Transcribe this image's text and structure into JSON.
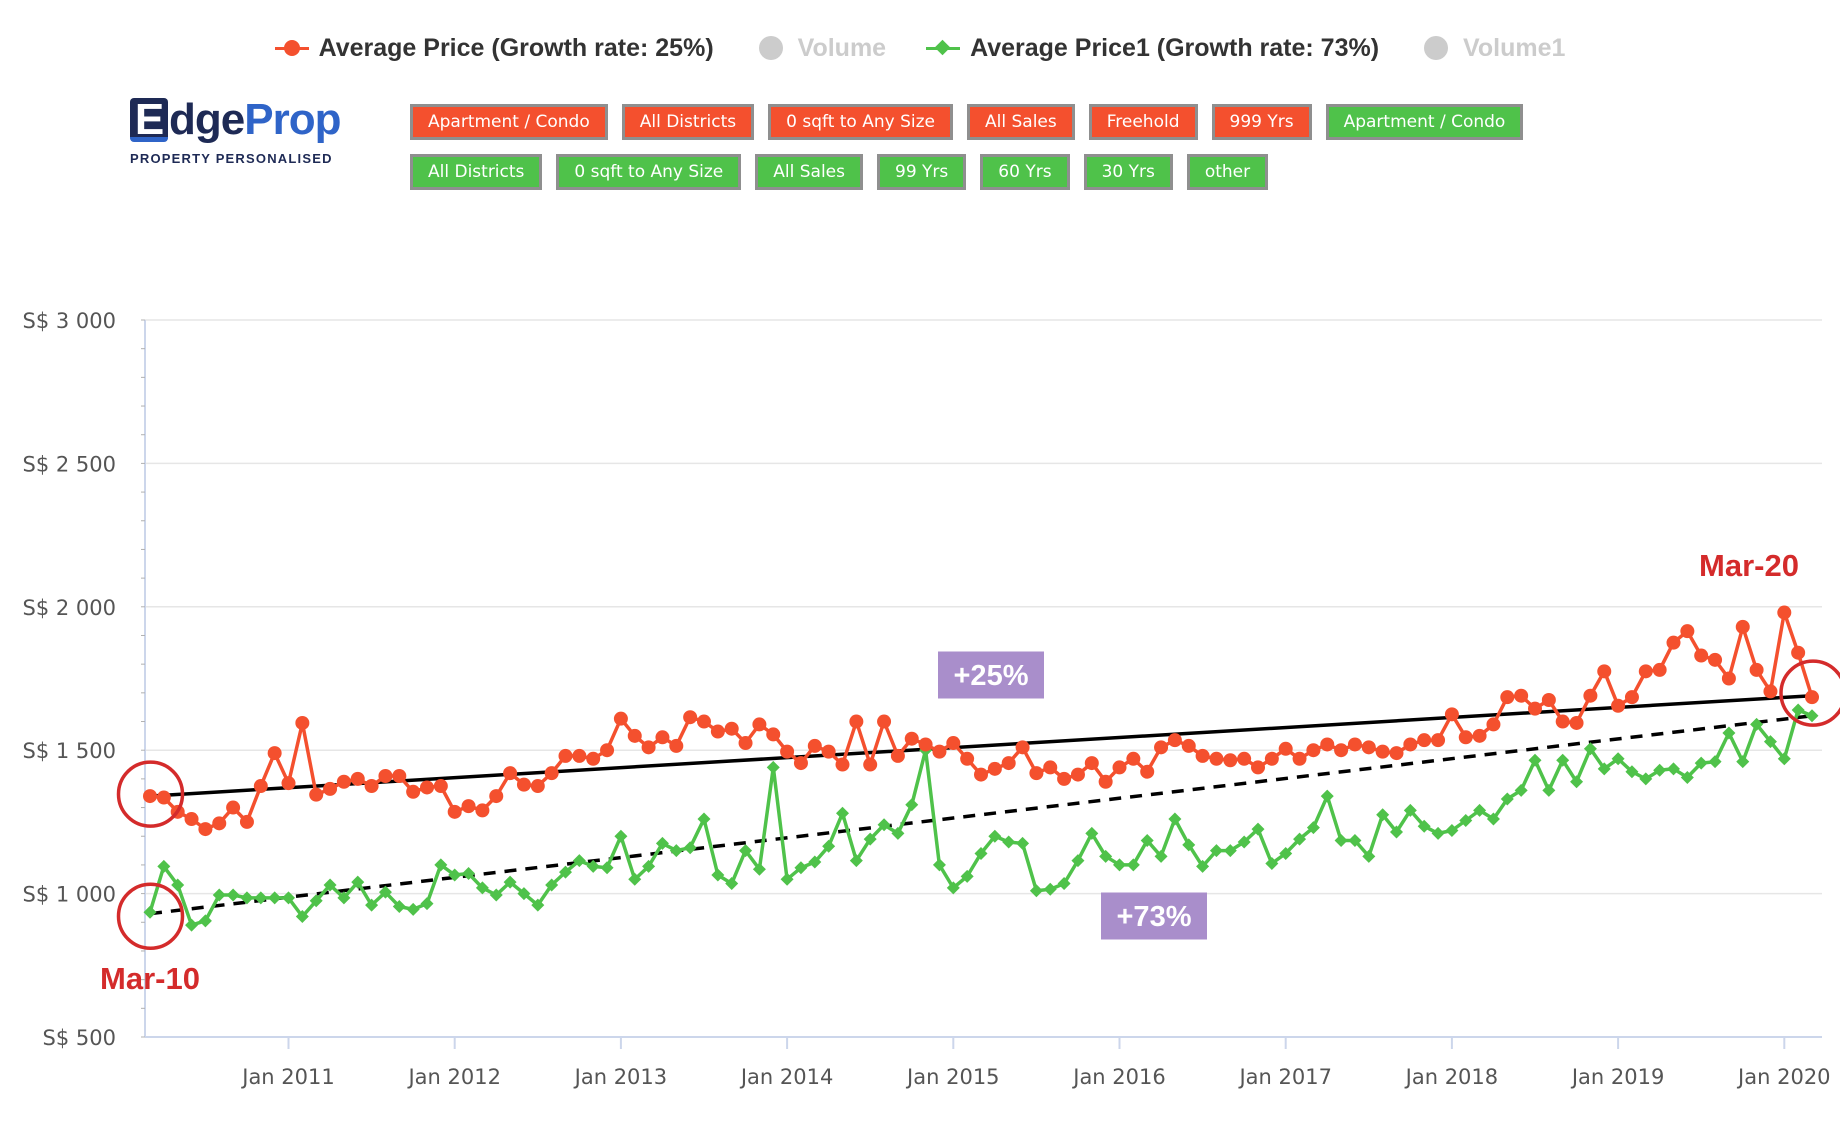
{
  "legend": [
    {
      "label": "Average Price (Growth rate: 25%)",
      "color": "#f4502e",
      "marker": "circle",
      "visible": true
    },
    {
      "label": "Volume",
      "color": "#cccccc",
      "marker": "circle",
      "visible": false
    },
    {
      "label": "Average Price1 (Growth rate: 73%)",
      "color": "#4fc24a",
      "marker": "diamond",
      "visible": true
    },
    {
      "label": "Volume1",
      "color": "#cccccc",
      "marker": "circle",
      "visible": false
    }
  ],
  "logo": {
    "wordmark_start": "E",
    "wordmark_mid": "dge",
    "wordmark_end": "Prop",
    "tagline": "PROPERTY PERSONALISED"
  },
  "filters": {
    "row1": [
      {
        "label": "Apartment / Condo",
        "color": "red"
      },
      {
        "label": "All Districts",
        "color": "red"
      },
      {
        "label": "0 sqft to Any Size",
        "color": "red"
      },
      {
        "label": "All Sales",
        "color": "red"
      },
      {
        "label": "Freehold",
        "color": "red"
      },
      {
        "label": "999 Yrs",
        "color": "red"
      },
      {
        "label": "Apartment / Condo",
        "color": "green"
      }
    ],
    "row2": [
      {
        "label": "All Districts",
        "color": "green"
      },
      {
        "label": "0 sqft to Any Size",
        "color": "green"
      },
      {
        "label": "All Sales",
        "color": "green"
      },
      {
        "label": "99 Yrs",
        "color": "green"
      },
      {
        "label": "60 Yrs",
        "color": "green"
      },
      {
        "label": "30 Yrs",
        "color": "green"
      },
      {
        "label": "other",
        "color": "green"
      }
    ]
  },
  "chart_data": {
    "type": "line",
    "title": "",
    "xlabel": "",
    "ylabel": "",
    "ylim": [
      500,
      3000
    ],
    "y_ticks": [
      500,
      1000,
      1500,
      2000,
      2500,
      3000
    ],
    "y_tick_labels": [
      "S$ 500",
      "S$ 1 000",
      "S$ 1 500",
      "S$ 2 000",
      "S$ 2 500",
      "S$ 3 000"
    ],
    "x_start": "2010-03",
    "x_end": "2020-03",
    "x_ticks": [
      "2011-01",
      "2012-01",
      "2013-01",
      "2014-01",
      "2015-01",
      "2016-01",
      "2017-01",
      "2018-01",
      "2019-01",
      "2020-01"
    ],
    "x_tick_labels": [
      "Jan 2011",
      "Jan 2012",
      "Jan 2013",
      "Jan 2014",
      "Jan 2015",
      "Jan 2016",
      "Jan 2017",
      "Jan 2018",
      "Jan 2019",
      "Jan 2020"
    ],
    "grid": true,
    "legend_position": "top",
    "series": [
      {
        "name": "Average Price (Growth rate: 25%)",
        "color": "#f4502e",
        "marker": "circle",
        "values": [
          1340,
          1335,
          1285,
          1260,
          1225,
          1245,
          1300,
          1250,
          1375,
          1490,
          1385,
          1595,
          1345,
          1365,
          1390,
          1400,
          1375,
          1410,
          1410,
          1355,
          1370,
          1375,
          1285,
          1305,
          1290,
          1340,
          1420,
          1380,
          1375,
          1420,
          1480,
          1480,
          1470,
          1500,
          1610,
          1550,
          1510,
          1545,
          1515,
          1615,
          1600,
          1565,
          1575,
          1525,
          1590,
          1555,
          1495,
          1455,
          1515,
          1495,
          1450,
          1600,
          1450,
          1600,
          1480,
          1540,
          1520,
          1495,
          1525,
          1470,
          1415,
          1435,
          1455,
          1510,
          1420,
          1440,
          1400,
          1415,
          1455,
          1390,
          1440,
          1470,
          1425,
          1510,
          1535,
          1515,
          1480,
          1470,
          1465,
          1470,
          1440,
          1470,
          1505,
          1470,
          1500,
          1520,
          1500,
          1520,
          1510,
          1495,
          1490,
          1520,
          1535,
          1535,
          1625,
          1545,
          1550,
          1590,
          1685,
          1690,
          1645,
          1675,
          1600,
          1595,
          1690,
          1775,
          1655,
          1685,
          1775,
          1780,
          1875,
          1915,
          1830,
          1815,
          1750,
          1930,
          1780,
          1705,
          1980,
          1840,
          1685
        ],
        "trend": {
          "start": 1340,
          "end": 1690,
          "style": "solid",
          "color": "#000000"
        }
      },
      {
        "name": "Average Price1 (Growth rate: 73%)",
        "color": "#4fc24a",
        "marker": "diamond",
        "values": [
          935,
          1095,
          1030,
          890,
          905,
          995,
          995,
          985,
          985,
          985,
          985,
          920,
          975,
          1030,
          985,
          1040,
          960,
          1005,
          955,
          945,
          965,
          1100,
          1065,
          1070,
          1020,
          995,
          1040,
          1000,
          960,
          1030,
          1075,
          1115,
          1095,
          1090,
          1200,
          1050,
          1095,
          1175,
          1150,
          1160,
          1260,
          1065,
          1035,
          1150,
          1085,
          1440,
          1050,
          1090,
          1110,
          1165,
          1280,
          1115,
          1190,
          1240,
          1210,
          1310,
          1500,
          1100,
          1020,
          1060,
          1140,
          1200,
          1180,
          1175,
          1010,
          1015,
          1035,
          1115,
          1210,
          1130,
          1100,
          1100,
          1185,
          1130,
          1260,
          1170,
          1095,
          1150,
          1150,
          1180,
          1225,
          1105,
          1140,
          1190,
          1230,
          1340,
          1185,
          1185,
          1130,
          1275,
          1215,
          1290,
          1235,
          1210,
          1220,
          1255,
          1290,
          1260,
          1330,
          1360,
          1465,
          1360,
          1465,
          1390,
          1505,
          1435,
          1470,
          1425,
          1400,
          1430,
          1435,
          1405,
          1455,
          1460,
          1560,
          1460,
          1590,
          1530,
          1470,
          1640,
          1620
        ],
        "trend": {
          "start": 930,
          "end": 1620,
          "style": "dashed",
          "color": "#000000"
        }
      }
    ],
    "annotations": [
      {
        "text": "Mar-10",
        "kind": "date"
      },
      {
        "text": "Mar-20",
        "kind": "date"
      },
      {
        "text": "+25%",
        "kind": "badge",
        "color": "#a98ecb"
      },
      {
        "text": "+73%",
        "kind": "badge",
        "color": "#a98ecb"
      }
    ]
  }
}
